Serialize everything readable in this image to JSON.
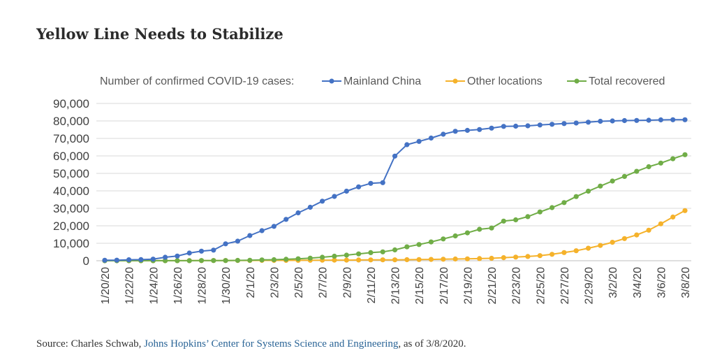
{
  "title": "Yellow Line Needs to Stabilize",
  "source": {
    "prefix": "Source: Charles Schwab, ",
    "link": "Johns Hopkins’ Center for Systems Science and Engineering",
    "suffix": ", as of 3/8/2020."
  },
  "chart_data": {
    "type": "line",
    "legend_title": "Number of confirmed COVID-19 cases:",
    "legend_position": "top",
    "grid": true,
    "ylim": [
      0,
      90000
    ],
    "yticks": [
      "0",
      "10,000",
      "20,000",
      "30,000",
      "40,000",
      "50,000",
      "60,000",
      "70,000",
      "80,000",
      "90,000"
    ],
    "x": [
      "1/20/20",
      "1/21/20",
      "1/22/20",
      "1/23/20",
      "1/24/20",
      "1/25/20",
      "1/26/20",
      "1/27/20",
      "1/28/20",
      "1/29/20",
      "1/30/20",
      "1/31/20",
      "2/1/20",
      "2/2/20",
      "2/3/20",
      "2/4/20",
      "2/5/20",
      "2/6/20",
      "2/7/20",
      "2/8/20",
      "2/9/20",
      "2/10/20",
      "2/11/20",
      "2/12/20",
      "2/13/20",
      "2/14/20",
      "2/15/20",
      "2/16/20",
      "2/17/20",
      "2/18/20",
      "2/19/20",
      "2/20/20",
      "2/21/20",
      "2/22/20",
      "2/23/20",
      "2/24/20",
      "2/25/20",
      "2/26/20",
      "2/27/20",
      "2/28/20",
      "2/29/20",
      "3/1/20",
      "3/2/20",
      "3/3/20",
      "3/4/20",
      "3/5/20",
      "3/6/20",
      "3/7/20",
      "3/8/20"
    ],
    "xtick_labels": [
      "1/20/20",
      "1/22/20",
      "1/24/20",
      "1/26/20",
      "1/28/20",
      "1/30/20",
      "2/1/20",
      "2/3/20",
      "2/5/20",
      "2/7/20",
      "2/9/20",
      "2/11/20",
      "2/13/20",
      "2/15/20",
      "2/17/20",
      "2/19/20",
      "2/21/20",
      "2/23/20",
      "2/25/20",
      "2/27/20",
      "2/29/20",
      "3/2/20",
      "3/4/20",
      "3/6/20",
      "3/8/20"
    ],
    "series": [
      {
        "name": "Mainland China",
        "color": "#4472c4",
        "values": [
          278,
          326,
          547,
          639,
          916,
          2000,
          2700,
          4400,
          5500,
          6100,
          9700,
          11200,
          14400,
          17200,
          19700,
          23700,
          27400,
          30600,
          34100,
          36800,
          39800,
          42300,
          44300,
          44700,
          59900,
          66400,
          68300,
          70200,
          72400,
          74100,
          74600,
          75100,
          75900,
          76900,
          77000,
          77200,
          77700,
          78100,
          78500,
          78800,
          79300,
          79800,
          80000,
          80200,
          80300,
          80400,
          80600,
          80700,
          80700
        ]
      },
      {
        "name": "Other locations",
        "color": "#f5b22b",
        "values": [
          4,
          6,
          8,
          14,
          25,
          40,
          57,
          64,
          87,
          105,
          118,
          153,
          173,
          183,
          188,
          212,
          227,
          265,
          317,
          343,
          361,
          457,
          476,
          523,
          538,
          595,
          685,
          780,
          896,
          999,
          1076,
          1220,
          1402,
          1769,
          2069,
          2459,
          2918,
          3664,
          4691,
          5739,
          7169,
          8774,
          10566,
          12668,
          14753,
          17481,
          21110,
          25000,
          28700
        ]
      },
      {
        "name": "Total recovered",
        "color": "#70ad47",
        "values": [
          0,
          0,
          28,
          30,
          36,
          39,
          49,
          58,
          101,
          120,
          135,
          214,
          275,
          463,
          614,
          843,
          1115,
          1476,
          1998,
          2595,
          3218,
          3917,
          4635,
          5082,
          6217,
          7977,
          9298,
          10755,
          12462,
          14206,
          15962,
          18014,
          18704,
          22699,
          23394,
          25227,
          27905,
          30384,
          33277,
          36711,
          39782,
          42716,
          45602,
          48228,
          51171,
          53797,
          55866,
          58359,
          60694
        ]
      }
    ]
  }
}
